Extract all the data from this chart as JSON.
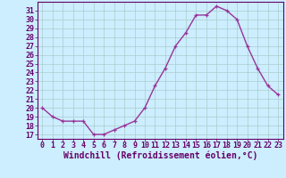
{
  "hours": [
    0,
    1,
    2,
    3,
    4,
    5,
    6,
    7,
    8,
    9,
    10,
    11,
    12,
    13,
    14,
    15,
    16,
    17,
    18,
    19,
    20,
    21,
    22,
    23
  ],
  "values": [
    20.0,
    19.0,
    18.5,
    18.5,
    18.5,
    17.0,
    17.0,
    17.5,
    18.0,
    18.5,
    20.0,
    22.5,
    24.5,
    27.0,
    28.5,
    30.5,
    30.5,
    31.5,
    31.0,
    30.0,
    27.0,
    24.5,
    22.5,
    21.5
  ],
  "line_color": "#993399",
  "marker": "+",
  "marker_size": 3.5,
  "line_width": 1.0,
  "bg_color": "#cceeff",
  "grid_color": "#aacccc",
  "xlabel": "Windchill (Refroidissement éolien,°C)",
  "yticks": [
    17,
    18,
    19,
    20,
    21,
    22,
    23,
    24,
    25,
    26,
    27,
    28,
    29,
    30,
    31
  ],
  "xticks": [
    0,
    1,
    2,
    3,
    4,
    5,
    6,
    7,
    8,
    9,
    10,
    11,
    12,
    13,
    14,
    15,
    16,
    17,
    18,
    19,
    20,
    21,
    22,
    23
  ],
  "xlabel_fontsize": 7,
  "tick_fontsize": 6,
  "text_color": "#660066",
  "spine_color": "#660066",
  "xlim": [
    -0.5,
    23.5
  ],
  "ylim": [
    16.5,
    32.0
  ]
}
